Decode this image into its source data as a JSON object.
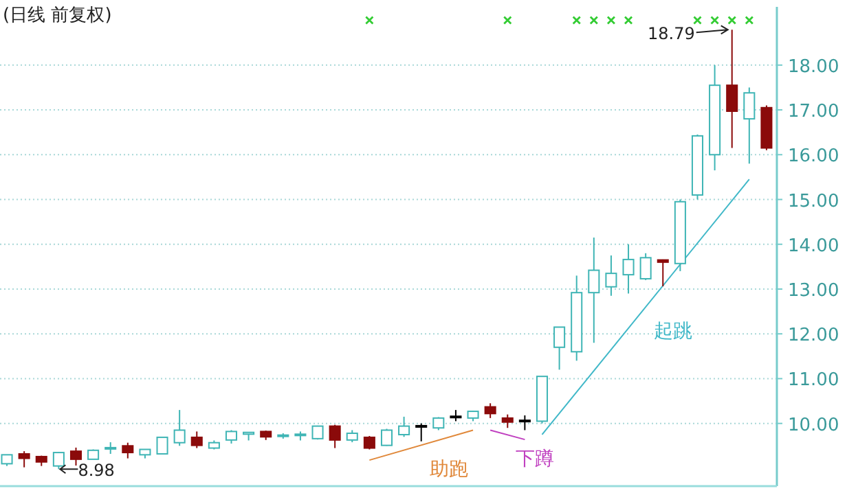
{
  "chart_data": {
    "type": "candlestick",
    "title": "(日线 前复权)",
    "categories": [
      null,
      null,
      null,
      null,
      null,
      null,
      null,
      null,
      null,
      null,
      null,
      null,
      null,
      null,
      null,
      null,
      null,
      null,
      null,
      null,
      null,
      null,
      null,
      null,
      null,
      null,
      null,
      null,
      null,
      null,
      null,
      null,
      null,
      null,
      null,
      null,
      null,
      null,
      null,
      null,
      null,
      null,
      null,
      null,
      null
    ],
    "ohlc": [
      [
        9.1,
        9.3,
        9.05,
        9.3
      ],
      [
        9.32,
        9.38,
        9.02,
        9.22
      ],
      [
        9.26,
        9.28,
        9.05,
        9.14
      ],
      [
        9.05,
        9.36,
        8.98,
        9.35
      ],
      [
        9.38,
        9.46,
        9.06,
        9.2
      ],
      [
        9.2,
        9.42,
        9.2,
        9.4
      ],
      [
        9.44,
        9.58,
        9.32,
        9.46
      ],
      [
        9.5,
        9.57,
        9.22,
        9.35
      ],
      [
        9.3,
        9.42,
        9.22,
        9.42
      ],
      [
        9.32,
        9.7,
        9.32,
        9.69
      ],
      [
        9.57,
        10.3,
        9.5,
        9.85
      ],
      [
        9.69,
        9.82,
        9.45,
        9.51
      ],
      [
        9.45,
        9.62,
        9.42,
        9.57
      ],
      [
        9.63,
        9.85,
        9.55,
        9.82
      ],
      [
        9.76,
        9.8,
        9.62,
        9.8
      ],
      [
        9.82,
        9.84,
        9.63,
        9.7
      ],
      [
        9.72,
        9.78,
        9.66,
        9.74
      ],
      [
        9.74,
        9.82,
        9.62,
        9.76
      ],
      [
        9.66,
        9.95,
        9.64,
        9.94
      ],
      [
        9.94,
        9.97,
        9.45,
        9.63
      ],
      [
        9.63,
        9.85,
        9.58,
        9.78
      ],
      [
        9.69,
        9.72,
        9.42,
        9.45
      ],
      [
        9.51,
        9.88,
        9.5,
        9.85
      ],
      [
        9.75,
        10.15,
        9.7,
        9.94
      ],
      [
        9.93,
        10.0,
        9.6,
        9.95
      ],
      [
        9.9,
        10.14,
        9.85,
        10.12
      ],
      [
        10.14,
        10.3,
        10.05,
        10.16
      ],
      [
        10.12,
        10.28,
        10.05,
        10.27
      ],
      [
        10.37,
        10.45,
        10.12,
        10.22
      ],
      [
        10.12,
        10.2,
        9.9,
        10.03
      ],
      [
        10.05,
        10.18,
        9.85,
        10.07
      ],
      [
        10.05,
        11.05,
        10.0,
        11.05
      ],
      [
        11.7,
        12.15,
        11.2,
        12.15
      ],
      [
        11.6,
        13.3,
        11.4,
        12.92
      ],
      [
        12.92,
        14.15,
        11.8,
        13.42
      ],
      [
        13.05,
        13.75,
        12.85,
        13.35
      ],
      [
        13.32,
        14.0,
        12.9,
        13.66
      ],
      [
        13.23,
        13.8,
        13.2,
        13.7
      ],
      [
        13.65,
        13.66,
        13.06,
        13.6
      ],
      [
        13.57,
        15.0,
        13.4,
        14.95
      ],
      [
        15.1,
        16.45,
        15.0,
        16.42
      ],
      [
        16.0,
        18.0,
        15.65,
        17.55
      ],
      [
        17.55,
        18.79,
        16.15,
        16.97
      ],
      [
        16.8,
        17.5,
        15.8,
        17.38
      ],
      [
        17.05,
        17.1,
        16.1,
        16.15
      ]
    ],
    "colors": [
      "#3fb5b5",
      "#8b0a0a",
      "#8b0a0a",
      "#3fb5b5",
      "#8b0a0a",
      "#3fb5b5",
      "#3fb5b5",
      "#8b0a0a",
      "#3fb5b5",
      "#3fb5b5",
      "#3fb5b5",
      "#8b0a0a",
      "#3fb5b5",
      "#3fb5b5",
      "#3fb5b5",
      "#8b0a0a",
      "#3fb5b5",
      "#3fb5b5",
      "#3fb5b5",
      "#8b0a0a",
      "#3fb5b5",
      "#8b0a0a",
      "#3fb5b5",
      "#3fb5b5",
      "#000000",
      "#3fb5b5",
      "#000000",
      "#3fb5b5",
      "#8b0a0a",
      "#8b0a0a",
      "#000000",
      "#3fb5b5",
      "#3fb5b5",
      "#3fb5b5",
      "#3fb5b5",
      "#3fb5b5",
      "#3fb5b5",
      "#3fb5b5",
      "#8b0a0a",
      "#3fb5b5",
      "#3fb5b5",
      "#3fb5b5",
      "#8b0a0a",
      "#3fb5b5",
      "#8b0a0a"
    ],
    "series": [
      {
        "type": "scatter",
        "marker": "cross",
        "color": "#33cc33",
        "values": [
          null,
          null,
          null,
          null,
          null,
          null,
          null,
          null,
          null,
          null,
          null,
          null,
          null,
          null,
          null,
          null,
          null,
          null,
          null,
          null,
          null,
          19.0,
          null,
          null,
          null,
          null,
          null,
          null,
          null,
          19.0,
          null,
          null,
          null,
          19.0,
          19.0,
          19.0,
          19.0,
          null,
          null,
          null,
          19.0,
          19.0,
          19.0,
          19.0,
          null
        ]
      },
      {
        "type": "line",
        "name": "助跑",
        "color": "#e0883a",
        "values": [
          null,
          null,
          null,
          null,
          null,
          null,
          null,
          null,
          null,
          null,
          null,
          null,
          null,
          null,
          null,
          null,
          null,
          null,
          null,
          null,
          null,
          9.18,
          null,
          null,
          null,
          null,
          null,
          9.85,
          null,
          null,
          null,
          null,
          null,
          null,
          null,
          null,
          null,
          null,
          null,
          null,
          null,
          null,
          null,
          null,
          null
        ]
      },
      {
        "type": "line",
        "name": "下蹲",
        "color": "#c040c0",
        "values": [
          null,
          null,
          null,
          null,
          null,
          null,
          null,
          null,
          null,
          null,
          null,
          null,
          null,
          null,
          null,
          null,
          null,
          null,
          null,
          null,
          null,
          null,
          null,
          null,
          null,
          null,
          null,
          null,
          9.85,
          null,
          9.64,
          null,
          null,
          null,
          null,
          null,
          null,
          null,
          null,
          null,
          null,
          null,
          null,
          null,
          null
        ]
      },
      {
        "type": "line",
        "name": "起跳",
        "color": "#40b8c8",
        "values": [
          null,
          null,
          null,
          null,
          null,
          null,
          null,
          null,
          null,
          null,
          null,
          null,
          null,
          null,
          null,
          null,
          null,
          null,
          null,
          null,
          null,
          null,
          null,
          null,
          null,
          null,
          null,
          null,
          null,
          null,
          null,
          9.75,
          null,
          null,
          null,
          null,
          null,
          null,
          null,
          null,
          null,
          null,
          null,
          15.45,
          null
        ]
      }
    ],
    "annotations": [
      "18.79",
      "8.98"
    ],
    "ylim": [
      8.6,
      19.3
    ],
    "yticks": [
      {
        "value": 10,
        "label": "10.00"
      },
      {
        "value": 11,
        "label": "11.00"
      },
      {
        "value": 12,
        "label": "12.00"
      },
      {
        "value": 13,
        "label": "13.00"
      },
      {
        "value": 14,
        "label": "14.00"
      },
      {
        "value": 15,
        "label": "15.00"
      },
      {
        "value": 16,
        "label": "16.00"
      },
      {
        "value": 17,
        "label": "17.00"
      },
      {
        "value": 18,
        "label": "18.00"
      }
    ],
    "grid": "y"
  }
}
